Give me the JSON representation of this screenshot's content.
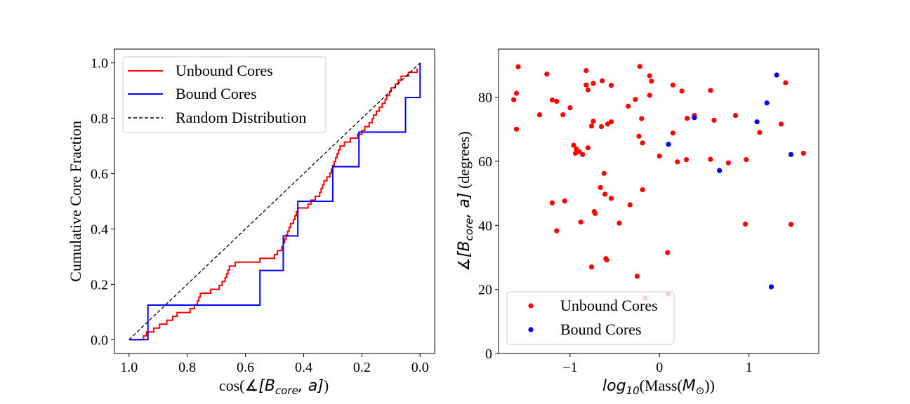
{
  "chart_data": [
    {
      "type": "line",
      "xlabel_prefix": "cos(",
      "xlabel_math": "∡[B",
      "xlabel_sub": "core",
      "xlabel_math2": ", a]",
      "xlabel_suffix": ")",
      "ylabel": "Cumulative Core Fraction",
      "xlim": [
        1.05,
        -0.05
      ],
      "ylim": [
        -0.05,
        1.05
      ],
      "xticks": [
        1.0,
        0.8,
        0.6,
        0.4,
        0.2,
        0.0
      ],
      "xtick_labels": [
        "1.0",
        "0.8",
        "0.6",
        "0.4",
        "0.2",
        "0.0"
      ],
      "yticks": [
        0.0,
        0.2,
        0.4,
        0.6,
        0.8,
        1.0
      ],
      "ytick_labels": [
        "0.0",
        "0.2",
        "0.4",
        "0.6",
        "0.8",
        "1.0"
      ],
      "legend_position": "top-left",
      "series": [
        {
          "name": "Unbound Cores",
          "color": "#ff0000",
          "style": "step",
          "x": [
            1.0,
            0.955,
            0.95,
            0.94,
            0.925,
            0.915,
            0.905,
            0.895,
            0.885,
            0.87,
            0.86,
            0.85,
            0.845,
            0.835,
            0.825,
            0.82,
            0.81,
            0.8,
            0.79,
            0.775,
            0.765,
            0.76,
            0.755,
            0.735,
            0.72,
            0.7,
            0.69,
            0.68,
            0.67,
            0.665,
            0.66,
            0.655,
            0.645,
            0.635,
            0.625,
            0.615,
            0.6,
            0.55,
            0.515,
            0.5,
            0.49,
            0.475,
            0.47,
            0.465,
            0.46,
            0.455,
            0.45,
            0.445,
            0.435,
            0.43,
            0.425,
            0.42,
            0.415,
            0.41,
            0.4,
            0.385,
            0.375,
            0.36,
            0.345,
            0.34,
            0.335,
            0.33,
            0.32,
            0.31,
            0.305,
            0.3,
            0.295,
            0.29,
            0.285,
            0.28,
            0.275,
            0.27,
            0.265,
            0.26,
            0.255,
            0.25,
            0.24,
            0.23,
            0.22,
            0.215,
            0.2,
            0.19,
            0.175,
            0.165,
            0.16,
            0.15,
            0.14,
            0.13,
            0.12,
            0.115,
            0.105,
            0.1,
            0.09,
            0.085,
            0.08,
            0.075,
            0.07,
            0.065,
            0.06,
            0.05,
            0.04,
            0.03,
            0.02,
            0.01
          ],
          "y": [
            0.0,
            0.0,
            0.014,
            0.028,
            0.028,
            0.042,
            0.042,
            0.056,
            0.056,
            0.07,
            0.07,
            0.084,
            0.084,
            0.098,
            0.098,
            0.098,
            0.098,
            0.098,
            0.112,
            0.126,
            0.14,
            0.154,
            0.168,
            0.168,
            0.182,
            0.182,
            0.196,
            0.21,
            0.224,
            0.238,
            0.252,
            0.266,
            0.266,
            0.28,
            0.28,
            0.28,
            0.28,
            0.294,
            0.294,
            0.308,
            0.322,
            0.336,
            0.35,
            0.364,
            0.378,
            0.392,
            0.406,
            0.42,
            0.434,
            0.448,
            0.462,
            0.476,
            0.476,
            0.476,
            0.476,
            0.49,
            0.504,
            0.518,
            0.532,
            0.546,
            0.56,
            0.574,
            0.588,
            0.602,
            0.616,
            0.63,
            0.644,
            0.658,
            0.672,
            0.686,
            0.7,
            0.7,
            0.7,
            0.714,
            0.714,
            0.714,
            0.728,
            0.728,
            0.728,
            0.742,
            0.756,
            0.77,
            0.784,
            0.798,
            0.812,
            0.826,
            0.84,
            0.854,
            0.868,
            0.882,
            0.896,
            0.91,
            0.91,
            0.924,
            0.924,
            0.938,
            0.938,
            0.952,
            0.952,
            0.952,
            0.966,
            0.966,
            0.966,
            0.98
          ]
        },
        {
          "name": "Bound Cores",
          "color": "#0000ff",
          "style": "step",
          "x": [
            1.0,
            0.935,
            0.55,
            0.47,
            0.42,
            0.3,
            0.21,
            0.05,
            0.0
          ],
          "y": [
            0.0,
            0.125,
            0.25,
            0.375,
            0.5,
            0.625,
            0.75,
            0.875,
            1.0
          ]
        },
        {
          "name": "Random Distribution",
          "color": "#000000",
          "style": "dashed",
          "x": [
            1.0,
            0.0
          ],
          "y": [
            0.0,
            1.0
          ]
        }
      ]
    },
    {
      "type": "scatter",
      "xlabel_math": "log",
      "xlabel_sub": "10",
      "xlabel_mid": "(Mass(",
      "xlabel_math2": "M",
      "xlabel_sub2": "⊙",
      "xlabel_suffix": "))",
      "ylabel_math": "∡[B",
      "ylabel_sub": "core",
      "ylabel_math2": ", a]",
      "ylabel_suffix": " (degrees)",
      "xlim": [
        -1.8,
        1.78
      ],
      "ylim": [
        0,
        95
      ],
      "xticks": [
        -1,
        0,
        1
      ],
      "xtick_labels": [
        "−1",
        "0",
        "1"
      ],
      "yticks": [
        0,
        20,
        40,
        60,
        80
      ],
      "ytick_labels": [
        "0",
        "20",
        "40",
        "60",
        "80"
      ],
      "legend_position": "bottom-left",
      "series": [
        {
          "name": "Unbound Cores",
          "color": "#ff0000",
          "points": [
            [
              -1.58,
              89.5
            ],
            [
              -1.6,
              81.2
            ],
            [
              -1.63,
              79.2
            ],
            [
              -1.6,
              70.0
            ],
            [
              -1.34,
              74.5
            ],
            [
              -1.26,
              87.2
            ],
            [
              -1.2,
              79.1
            ],
            [
              -1.15,
              78.7
            ],
            [
              -1.08,
              74.5
            ],
            [
              -1.0,
              76.7
            ],
            [
              -0.96,
              65.0
            ],
            [
              -0.94,
              62.5
            ],
            [
              -0.93,
              63.8
            ],
            [
              -0.9,
              63.0
            ],
            [
              -0.86,
              62.1
            ],
            [
              -0.82,
              88.3
            ],
            [
              -0.82,
              83.8
            ],
            [
              -0.8,
              82.3
            ],
            [
              -0.8,
              64.2
            ],
            [
              -0.74,
              84.3
            ],
            [
              -0.74,
              72.5
            ],
            [
              -0.76,
              71.0
            ],
            [
              -0.64,
              85.1
            ],
            [
              -0.65,
              70.8
            ],
            [
              -0.54,
              83.7
            ],
            [
              -0.54,
              72.3
            ],
            [
              -0.58,
              71.6
            ],
            [
              -0.35,
              77.2
            ],
            [
              -0.27,
              79.3
            ],
            [
              -0.22,
              89.6
            ],
            [
              -0.11,
              86.7
            ],
            [
              -0.09,
              85.0
            ],
            [
              -0.23,
              67.8
            ],
            [
              -0.2,
              73.3
            ],
            [
              -0.19,
              65.7
            ],
            [
              -0.11,
              80.6
            ],
            [
              0.15,
              83.8
            ],
            [
              0.25,
              81.9
            ],
            [
              0.31,
              73.4
            ],
            [
              0.39,
              74.3
            ],
            [
              0.15,
              68.8
            ],
            [
              0.0,
              61.6
            ],
            [
              0.2,
              59.8
            ],
            [
              0.3,
              60.5
            ],
            [
              0.57,
              82.1
            ],
            [
              0.61,
              72.8
            ],
            [
              0.57,
              60.6
            ],
            [
              0.77,
              59.5
            ],
            [
              0.85,
              74.3
            ],
            [
              0.97,
              60.5
            ],
            [
              1.12,
              69.0
            ],
            [
              1.36,
              71.6
            ],
            [
              1.41,
              84.5
            ],
            [
              1.61,
              62.5
            ],
            [
              -1.2,
              47.0
            ],
            [
              -1.06,
              47.6
            ],
            [
              -1.15,
              38.3
            ],
            [
              -0.88,
              41.0
            ],
            [
              -0.62,
              56.2
            ],
            [
              -0.66,
              51.8
            ],
            [
              -0.61,
              49.7
            ],
            [
              -0.54,
              48.4
            ],
            [
              -0.73,
              44.3
            ],
            [
              -0.72,
              43.7
            ],
            [
              -0.33,
              46.4
            ],
            [
              -0.45,
              40.7
            ],
            [
              -0.19,
              51.1
            ],
            [
              0.96,
              40.4
            ],
            [
              1.47,
              40.3
            ],
            [
              -0.6,
              29.6
            ],
            [
              -0.59,
              29.2
            ],
            [
              -0.76,
              27.0
            ],
            [
              0.09,
              31.5
            ],
            [
              -0.25,
              24.1
            ],
            [
              -0.16,
              17.3
            ],
            [
              0.1,
              18.6
            ]
          ]
        },
        {
          "name": "Bound Cores",
          "color": "#0000ff",
          "points": [
            [
              0.1,
              65.3
            ],
            [
              0.39,
              73.6
            ],
            [
              0.67,
              57.1
            ],
            [
              1.09,
              72.3
            ],
            [
              1.2,
              78.2
            ],
            [
              1.31,
              86.9
            ],
            [
              1.47,
              62.1
            ],
            [
              1.25,
              20.8
            ]
          ]
        }
      ]
    }
  ]
}
